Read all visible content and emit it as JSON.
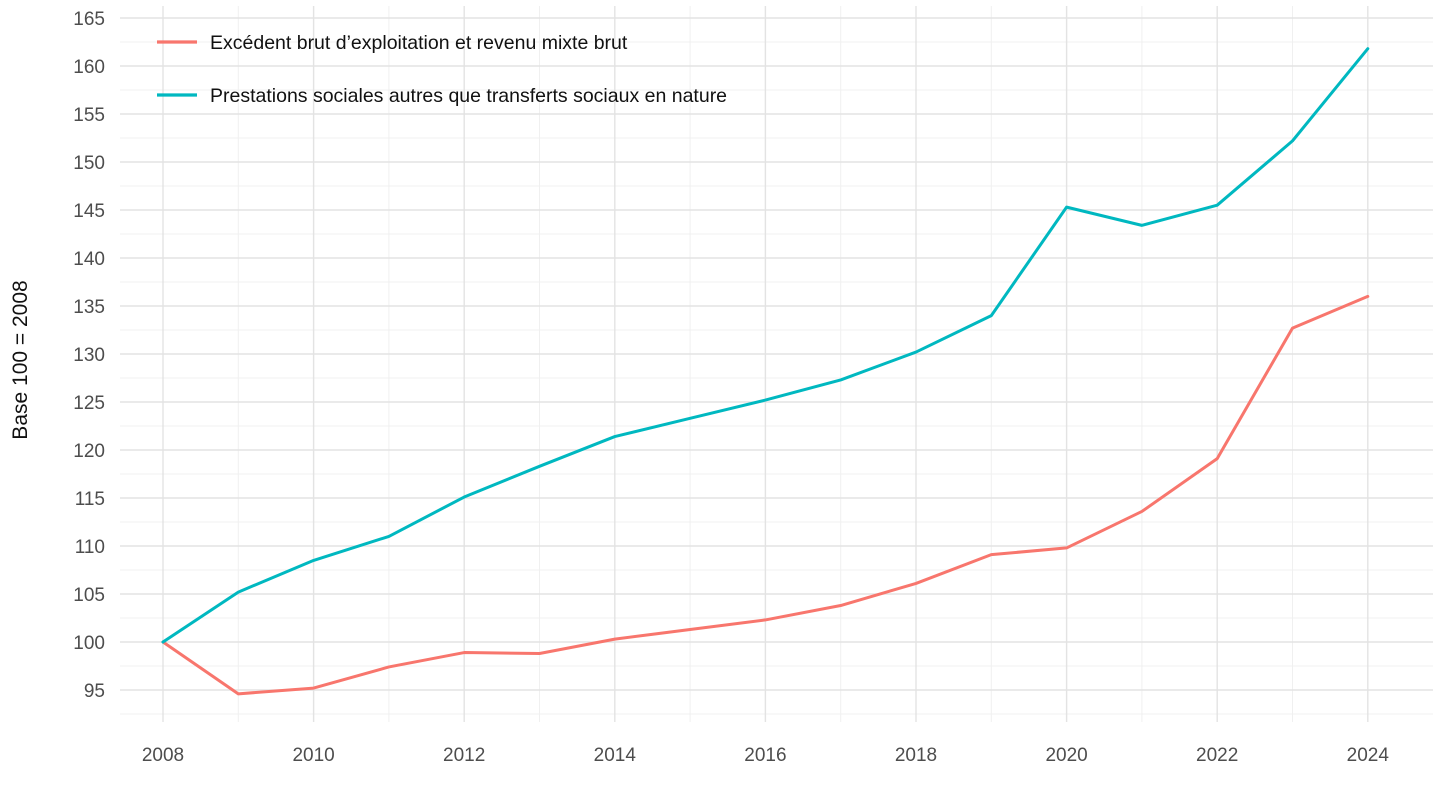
{
  "chart_data": {
    "type": "line",
    "x": [
      2008,
      2009,
      2010,
      2011,
      2012,
      2013,
      2014,
      2015,
      2016,
      2017,
      2018,
      2019,
      2020,
      2021,
      2022,
      2023,
      2024
    ],
    "series": [
      {
        "name": "Excédent brut d’exploitation et revenu mixte brut",
        "color": "#F8766D",
        "values": [
          100,
          94.6,
          95.2,
          97.4,
          98.9,
          98.8,
          100.3,
          101.3,
          102.3,
          103.8,
          106.1,
          109.1,
          109.8,
          113.6,
          119.1,
          132.7,
          136.0
        ]
      },
      {
        "name": "Prestations sociales autres que transferts sociaux en nature",
        "color": "#00B8C0",
        "values": [
          100,
          105.2,
          108.5,
          111.0,
          115.1,
          118.3,
          121.4,
          123.3,
          125.2,
          127.3,
          130.2,
          134.0,
          145.3,
          143.4,
          145.5,
          152.2,
          161.8
        ]
      }
    ],
    "title": "",
    "xlabel": "",
    "ylabel": "Base 100 = 2008",
    "ylim": [
      92.5,
      166
    ],
    "y_major_ticks": [
      95,
      100,
      105,
      110,
      115,
      120,
      125,
      130,
      135,
      140,
      145,
      150,
      155,
      160,
      165
    ],
    "y_minor_step": 2.5,
    "x_major_ticks": [
      2008,
      2010,
      2012,
      2014,
      2016,
      2018,
      2020,
      2022,
      2024
    ],
    "x_minor_ticks": [
      2007,
      2009,
      2011,
      2013,
      2015,
      2017,
      2019,
      2021,
      2023
    ],
    "grid": "on",
    "legend_position": "top-left-inside"
  },
  "colors": {
    "background": "#ffffff",
    "major_grid": "#e3e3e3",
    "minor_grid": "#f0f0f0",
    "tick_text": "#4d4d4d",
    "title_text": "#111111",
    "series1": "#F8766D",
    "series2": "#00B8C0"
  },
  "legend": {
    "item1": "Excédent brut d’exploitation et revenu mixte brut",
    "item2": "Prestations sociales autres que transferts sociaux en nature"
  },
  "y_axis": {
    "title": "Base 100 = 2008"
  }
}
